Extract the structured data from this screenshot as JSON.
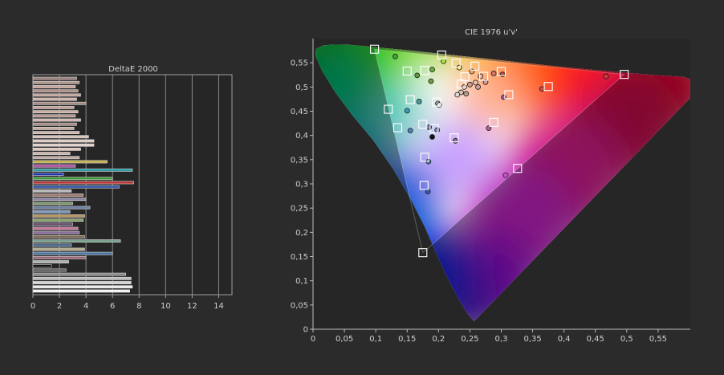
{
  "chart_data": [
    {
      "type": "bar",
      "orientation": "horizontal",
      "title": "DeltaE 2000",
      "xlim": [
        0,
        15
      ],
      "x_ticks": [
        0,
        2,
        4,
        6,
        8,
        10,
        12,
        14
      ],
      "x_tick_labels": [
        "0",
        "2",
        "4",
        "6",
        "8",
        "10",
        "12",
        "14"
      ],
      "grid": true,
      "bars": [
        {
          "value": 3.3,
          "color": "#9a7f7a"
        },
        {
          "value": 3.5,
          "color": "#b3978e"
        },
        {
          "value": 3.2,
          "color": "#c7a89b"
        },
        {
          "value": 3.4,
          "color": "#b08f86"
        },
        {
          "value": 3.6,
          "color": "#c4a79e"
        },
        {
          "value": 3.3,
          "color": "#d1b3a8"
        },
        {
          "value": 4.0,
          "color": "#a88c84"
        },
        {
          "value": 3.1,
          "color": "#bfa096"
        },
        {
          "value": 3.4,
          "color": "#c9aea4"
        },
        {
          "value": 3.2,
          "color": "#b89a91"
        },
        {
          "value": 3.6,
          "color": "#d4b9b0"
        },
        {
          "value": 3.3,
          "color": "#a98d86"
        },
        {
          "value": 3.1,
          "color": "#c6ab9f"
        },
        {
          "value": 3.5,
          "color": "#cdb3ab"
        },
        {
          "value": 4.2,
          "color": "#d9c3bb"
        },
        {
          "value": 4.6,
          "color": "#e0ccc5"
        },
        {
          "value": 4.6,
          "color": "#e4d3cd"
        },
        {
          "value": 3.6,
          "color": "#e0c6bc"
        },
        {
          "value": 2.8,
          "color": "#cdb5ad"
        },
        {
          "value": 3.5,
          "color": "#bfa9a0"
        },
        {
          "value": 5.6,
          "color": "#c4b04a"
        },
        {
          "value": 3.2,
          "color": "#b44fa5"
        },
        {
          "value": 7.5,
          "color": "#2a9aa4"
        },
        {
          "value": 2.3,
          "color": "#2233a8"
        },
        {
          "value": 6.0,
          "color": "#3e9a3a"
        },
        {
          "value": 7.6,
          "color": "#b83434"
        },
        {
          "value": 6.5,
          "color": "#3655a6"
        },
        {
          "value": 2.9,
          "color": "#b9b9b9"
        },
        {
          "value": 3.8,
          "color": "#a07a6e"
        },
        {
          "value": 4.0,
          "color": "#8f86a4"
        },
        {
          "value": 3.0,
          "color": "#7e9a6e"
        },
        {
          "value": 4.3,
          "color": "#6a7fa0"
        },
        {
          "value": 2.8,
          "color": "#7a9abf"
        },
        {
          "value": 3.9,
          "color": "#b5945f"
        },
        {
          "value": 3.8,
          "color": "#8aa46a"
        },
        {
          "value": 3.0,
          "color": "#6b5070"
        },
        {
          "value": 3.4,
          "color": "#c9749a"
        },
        {
          "value": 3.5,
          "color": "#8e6f9e"
        },
        {
          "value": 3.9,
          "color": "#7d6a52"
        },
        {
          "value": 6.6,
          "color": "#7aa08e"
        },
        {
          "value": 2.9,
          "color": "#4b6a8c"
        },
        {
          "value": 3.9,
          "color": "#b0a98a"
        },
        {
          "value": 6.0,
          "color": "#4a76a8"
        },
        {
          "value": 4.0,
          "color": "#9a6878"
        },
        {
          "value": 2.7,
          "color": "#b0b0b0"
        },
        {
          "value": 1.4,
          "color": "#111111"
        },
        {
          "value": 2.5,
          "color": "#606060"
        },
        {
          "value": 7.0,
          "color": "#8a8a8a"
        },
        {
          "value": 7.4,
          "color": "#bdbdbd"
        },
        {
          "value": 7.4,
          "color": "#d6d6d6"
        },
        {
          "value": 7.5,
          "color": "#ededed"
        },
        {
          "value": 7.3,
          "color": "#f7f7f7"
        }
      ]
    },
    {
      "type": "scatter",
      "title": "CIE 1976 u'v'",
      "xlim": [
        0,
        0.6
      ],
      "ylim": [
        0,
        0.6
      ],
      "x_ticks": [
        0,
        0.05,
        0.1,
        0.15,
        0.2,
        0.25,
        0.3,
        0.35,
        0.4,
        0.45,
        0.5,
        0.55
      ],
      "x_tick_labels": [
        "0",
        "0,05",
        "0,1",
        "0,15",
        "0,2",
        "0,25",
        "0,3",
        "0,35",
        "0,4",
        "0,45",
        "0,5",
        "0,55"
      ],
      "y_ticks": [
        0,
        0.05,
        0.1,
        0.15,
        0.2,
        0.25,
        0.3,
        0.35,
        0.4,
        0.45,
        0.5,
        0.55
      ],
      "y_tick_labels": [
        "0",
        "0,05",
        "0,1",
        "0,15",
        "0,2",
        "0,25",
        "0,3",
        "0,35",
        "0,4",
        "0,45",
        "0,5",
        "0,55"
      ],
      "gamut_triangle": [
        [
          0.496,
          0.526
        ],
        [
          0.098,
          0.578
        ],
        [
          0.175,
          0.158
        ]
      ],
      "targets": [
        {
          "u": 0.098,
          "v": 0.578
        },
        {
          "u": 0.205,
          "v": 0.566
        },
        {
          "u": 0.228,
          "v": 0.549
        },
        {
          "u": 0.258,
          "v": 0.543
        },
        {
          "u": 0.178,
          "v": 0.534
        },
        {
          "u": 0.15,
          "v": 0.533
        },
        {
          "u": 0.3,
          "v": 0.532
        },
        {
          "u": 0.272,
          "v": 0.522
        },
        {
          "u": 0.242,
          "v": 0.521
        },
        {
          "u": 0.236,
          "v": 0.506
        },
        {
          "u": 0.375,
          "v": 0.501
        },
        {
          "u": 0.312,
          "v": 0.484
        },
        {
          "u": 0.155,
          "v": 0.474
        },
        {
          "u": 0.197,
          "v": 0.469
        },
        {
          "u": 0.12,
          "v": 0.454
        },
        {
          "u": 0.288,
          "v": 0.427
        },
        {
          "u": 0.175,
          "v": 0.423
        },
        {
          "u": 0.135,
          "v": 0.416
        },
        {
          "u": 0.193,
          "v": 0.414
        },
        {
          "u": 0.225,
          "v": 0.395
        },
        {
          "u": 0.178,
          "v": 0.355
        },
        {
          "u": 0.326,
          "v": 0.332
        },
        {
          "u": 0.177,
          "v": 0.297
        },
        {
          "u": 0.175,
          "v": 0.158
        },
        {
          "u": 0.496,
          "v": 0.526
        }
      ],
      "measured": [
        {
          "u": 0.131,
          "v": 0.563,
          "color": "#3fa83a"
        },
        {
          "u": 0.208,
          "v": 0.553,
          "color": "#9fe03a"
        },
        {
          "u": 0.19,
          "v": 0.536,
          "color": "#6ab43a"
        },
        {
          "u": 0.166,
          "v": 0.524,
          "color": "#5e9a3e"
        },
        {
          "u": 0.188,
          "v": 0.512,
          "color": "#6d9f3e"
        },
        {
          "u": 0.233,
          "v": 0.54,
          "color": "#f2e06a"
        },
        {
          "u": 0.253,
          "v": 0.532,
          "color": "#f0a860"
        },
        {
          "u": 0.288,
          "v": 0.528,
          "color": "#d87a6a"
        },
        {
          "u": 0.302,
          "v": 0.526,
          "color": "#b84a46"
        },
        {
          "u": 0.267,
          "v": 0.522,
          "color": "#e8b49a"
        },
        {
          "u": 0.275,
          "v": 0.51,
          "color": "#d69a90"
        },
        {
          "u": 0.259,
          "v": 0.509,
          "color": "#e9c3b3"
        },
        {
          "u": 0.25,
          "v": 0.505,
          "color": "#cfa08e"
        },
        {
          "u": 0.241,
          "v": 0.5,
          "color": "#e3b9a8"
        },
        {
          "u": 0.263,
          "v": 0.5,
          "color": "#caa49c"
        },
        {
          "u": 0.236,
          "v": 0.489,
          "color": "#d9c0b3"
        },
        {
          "u": 0.244,
          "v": 0.486,
          "color": "#b89b88"
        },
        {
          "u": 0.23,
          "v": 0.484,
          "color": "#dcdcdc"
        },
        {
          "u": 0.365,
          "v": 0.496,
          "color": "#c84a48"
        },
        {
          "u": 0.467,
          "v": 0.522,
          "color": "#d33a3a"
        },
        {
          "u": 0.304,
          "v": 0.479,
          "color": "#a84c90"
        },
        {
          "u": 0.169,
          "v": 0.47,
          "color": "#48a0a0"
        },
        {
          "u": 0.15,
          "v": 0.451,
          "color": "#3c9cb8"
        },
        {
          "u": 0.199,
          "v": 0.466,
          "color": "#bfbfbf"
        },
        {
          "u": 0.201,
          "v": 0.463,
          "color": "#e6e6e6"
        },
        {
          "u": 0.28,
          "v": 0.415,
          "color": "#b05a9e"
        },
        {
          "u": 0.155,
          "v": 0.41,
          "color": "#4a82b8"
        },
        {
          "u": 0.185,
          "v": 0.417,
          "color": "#6f6f9e"
        },
        {
          "u": 0.198,
          "v": 0.411,
          "color": "#7e88b0"
        },
        {
          "u": 0.19,
          "v": 0.397,
          "color": "#111111"
        },
        {
          "u": 0.227,
          "v": 0.389,
          "color": "#8e6f9e"
        },
        {
          "u": 0.184,
          "v": 0.346,
          "color": "#4a76a8"
        },
        {
          "u": 0.307,
          "v": 0.318,
          "color": "#c65ac6"
        },
        {
          "u": 0.183,
          "v": 0.284,
          "color": "#3a58b0"
        }
      ]
    }
  ]
}
